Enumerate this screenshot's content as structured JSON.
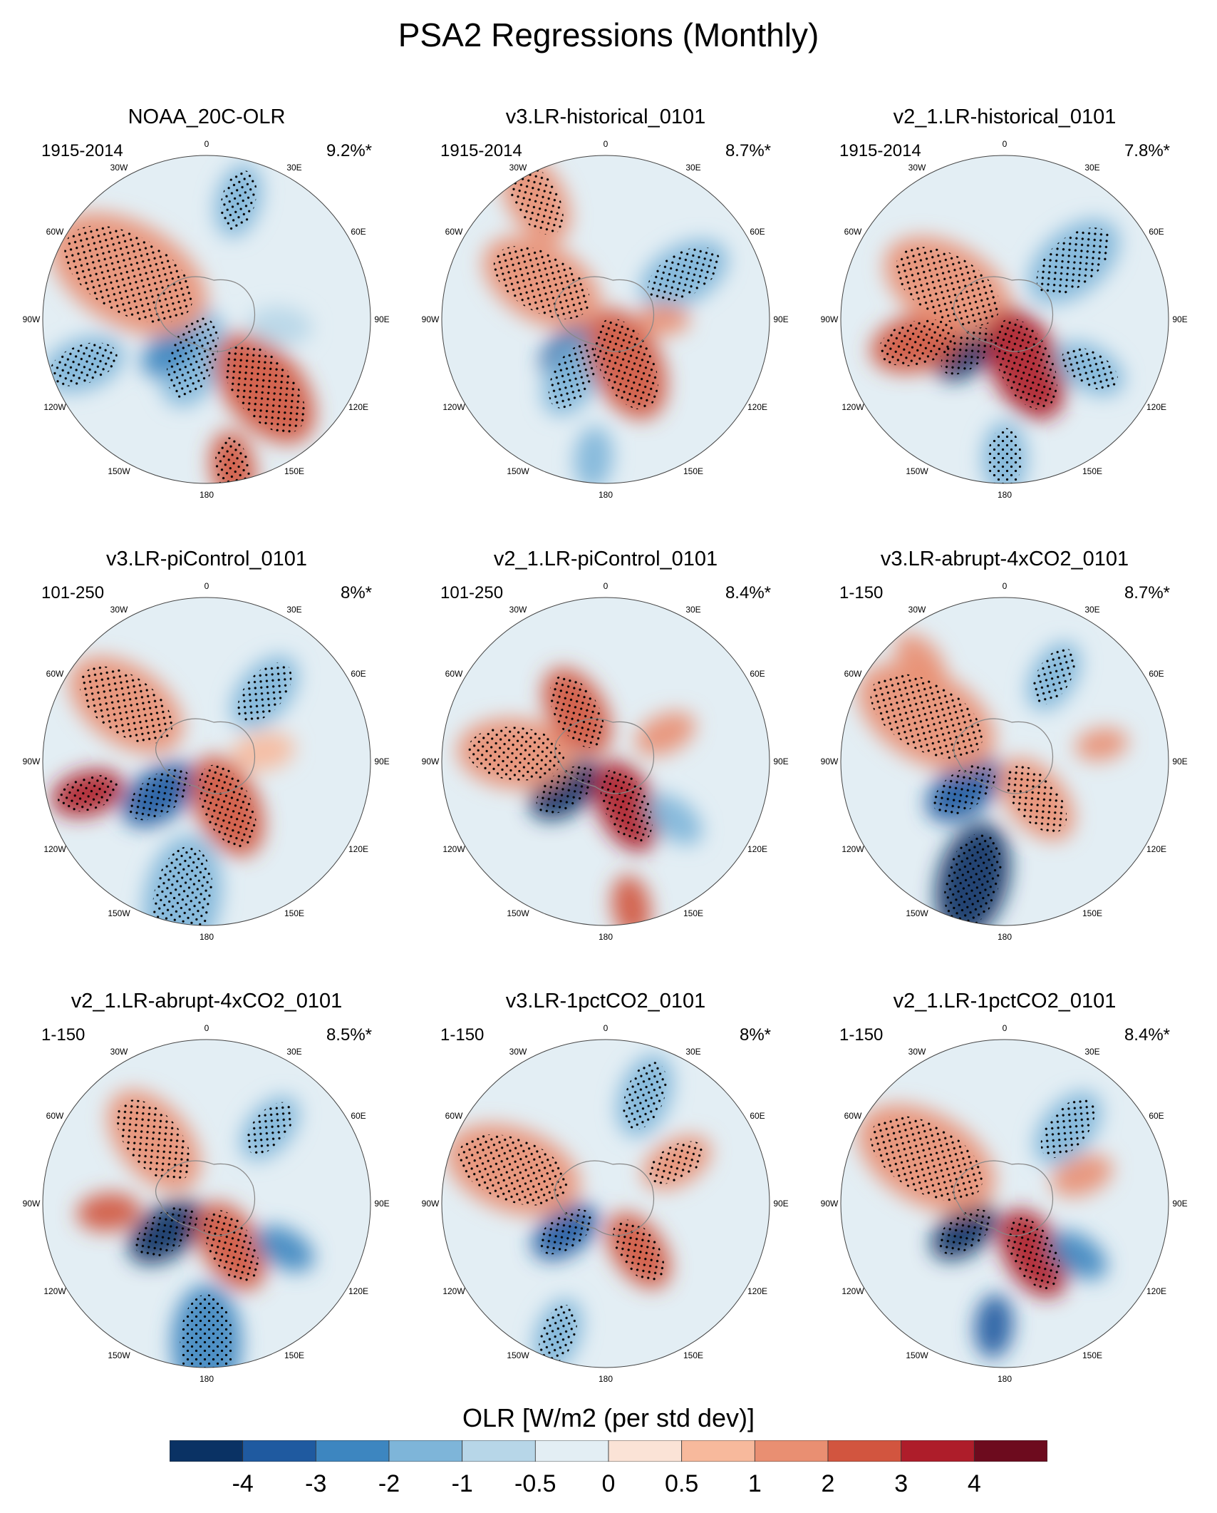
{
  "title": "PSA2 Regressions (Monthly)",
  "lon_labels": [
    "0",
    "30E",
    "60E",
    "90E",
    "120E",
    "150E",
    "180",
    "150W",
    "120W",
    "90W",
    "60W",
    "30W"
  ],
  "panels": [
    {
      "title": "NOAA_20C-OLR",
      "period": "1915-2014",
      "variance": "9.2%*"
    },
    {
      "title": "v3.LR-historical_0101",
      "period": "1915-2014",
      "variance": "8.7%*"
    },
    {
      "title": "v2_1.LR-historical_0101",
      "period": "1915-2014",
      "variance": "7.8%*"
    },
    {
      "title": "v3.LR-piControl_0101",
      "period": "101-250",
      "variance": "8%*"
    },
    {
      "title": "v2_1.LR-piControl_0101",
      "period": "101-250",
      "variance": "8.4%*"
    },
    {
      "title": "v3.LR-abrupt-4xCO2_0101",
      "period": "1-150",
      "variance": "8.7%*"
    },
    {
      "title": "v2_1.LR-abrupt-4xCO2_0101",
      "period": "1-150",
      "variance": "8.5%*"
    },
    {
      "title": "v3.LR-1pctCO2_0101",
      "period": "1-150",
      "variance": "8%*"
    },
    {
      "title": "v2_1.LR-1pctCO2_0101",
      "period": "1-150",
      "variance": "8.4%*"
    }
  ],
  "colorbar": {
    "title": "OLR [W/m2 (per std dev)]",
    "labels": [
      "-4",
      "-3",
      "-2",
      "-1",
      "-0.5",
      "0",
      "0.5",
      "1",
      "2",
      "3",
      "4"
    ],
    "colors": [
      "#0a3264",
      "#1f5aa0",
      "#3d86c0",
      "#7eb5d9",
      "#b7d6e8",
      "#e3eef4",
      "#fbe3d6",
      "#f7b99c",
      "#e98f72",
      "#d2553f",
      "#ae1d2a",
      "#6d0b1e"
    ]
  }
}
